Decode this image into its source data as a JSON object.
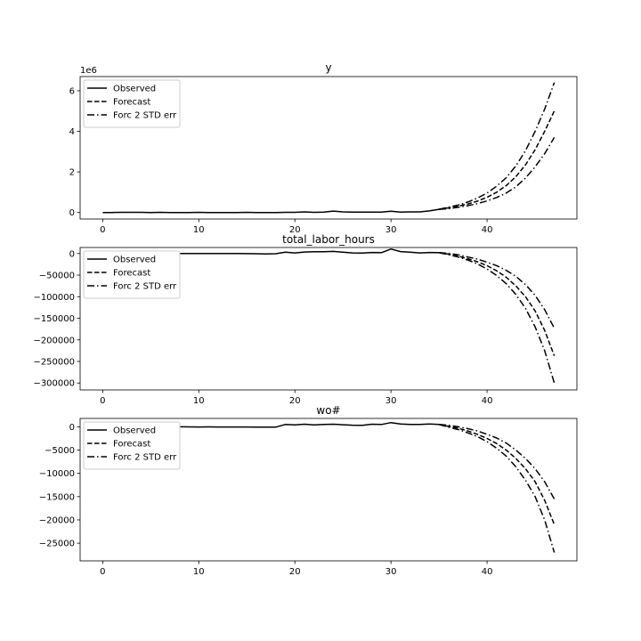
{
  "chart_data": [
    {
      "type": "line",
      "title": "y",
      "offset_text": "1e6",
      "xlim": [
        -2.35,
        49.35
      ],
      "ylim": [
        -0.32,
        6.7
      ],
      "xticks": [
        0,
        10,
        20,
        30,
        40
      ],
      "yticks": [
        0,
        2,
        4,
        6
      ],
      "ytick_labels": [
        "0",
        "2",
        "4",
        "6"
      ],
      "legend": "upper-left",
      "series": [
        {
          "name": "Observed",
          "style": "solid",
          "x": [
            0,
            1,
            2,
            3,
            4,
            5,
            6,
            7,
            8,
            9,
            10,
            11,
            12,
            13,
            14,
            15,
            16,
            17,
            18,
            19,
            20,
            21,
            22,
            23,
            24,
            25,
            26,
            27,
            28,
            29,
            30,
            31,
            32,
            33,
            34,
            35
          ],
          "values": [
            0.0,
            0.0,
            0.01,
            0.01,
            0.01,
            0.0,
            0.01,
            0.0,
            0.0,
            0.0,
            0.01,
            0.0,
            0.0,
            0.0,
            0.0,
            0.01,
            0.0,
            0.0,
            0.0,
            0.01,
            0.01,
            0.03,
            0.01,
            0.02,
            0.07,
            0.03,
            0.02,
            0.02,
            0.02,
            0.02,
            0.06,
            0.02,
            0.03,
            0.03,
            0.08,
            0.16
          ]
        },
        {
          "name": "Forecast",
          "style": "dashed",
          "x": [
            35,
            36,
            37,
            38,
            39,
            40,
            41,
            42,
            43,
            44,
            45,
            46,
            47
          ],
          "values": [
            0.16,
            0.23,
            0.31,
            0.42,
            0.56,
            0.75,
            1.0,
            1.33,
            1.77,
            2.35,
            3.1,
            4.0,
            5.0
          ]
        },
        {
          "name": "Forc 2 STD err",
          "style": "dashdot",
          "x": [
            35,
            36,
            37,
            38,
            39,
            40,
            41,
            42,
            43,
            44,
            45,
            46,
            47
          ],
          "values": [
            0.16,
            0.27,
            0.37,
            0.52,
            0.71,
            0.96,
            1.3,
            1.72,
            2.3,
            3.05,
            4.0,
            5.1,
            6.4
          ]
        },
        {
          "name": "",
          "style": "dashdot",
          "x": [
            35,
            36,
            37,
            38,
            39,
            40,
            41,
            42,
            43,
            44,
            45,
            46,
            47
          ],
          "values": [
            0.16,
            0.19,
            0.26,
            0.34,
            0.44,
            0.57,
            0.74,
            0.96,
            1.27,
            1.7,
            2.25,
            2.9,
            3.7
          ]
        }
      ]
    },
    {
      "type": "line",
      "title": "total_labor_hours",
      "xlim": [
        -2.35,
        49.35
      ],
      "ylim": [
        -316000,
        14000
      ],
      "xticks": [
        0,
        10,
        20,
        30,
        40
      ],
      "yticks": [
        0,
        -50000,
        -100000,
        -150000,
        -200000,
        -250000,
        -300000
      ],
      "ytick_labels": [
        "0",
        "−50000",
        "−100000",
        "−150000",
        "−200000",
        "−250000",
        "−300000"
      ],
      "legend": "upper-left",
      "series": [
        {
          "name": "Observed",
          "style": "solid",
          "x": [
            0,
            1,
            2,
            3,
            4,
            5,
            6,
            7,
            8,
            9,
            10,
            11,
            12,
            13,
            14,
            15,
            16,
            17,
            18,
            19,
            20,
            21,
            22,
            23,
            24,
            25,
            26,
            27,
            28,
            29,
            30,
            31,
            32,
            33,
            34,
            35
          ],
          "values": [
            0,
            0,
            0,
            0,
            0,
            0,
            0,
            0,
            0,
            0,
            0,
            0,
            0,
            200,
            0,
            -200,
            -500,
            -800,
            -500,
            3000,
            1500,
            3500,
            4000,
            4000,
            5000,
            3000,
            1500,
            1000,
            2500,
            2000,
            10500,
            4500,
            3000,
            1500,
            2500,
            2000
          ]
        },
        {
          "name": "Forecast",
          "style": "dashed",
          "x": [
            35,
            36,
            37,
            38,
            39,
            40,
            41,
            42,
            43,
            44,
            45,
            46,
            47
          ],
          "values": [
            2000,
            -1500,
            -6000,
            -12000,
            -19000,
            -28000,
            -40000,
            -55000,
            -75000,
            -100000,
            -133000,
            -178000,
            -237000
          ]
        },
        {
          "name": "Forc 2 STD err",
          "style": "dashdot",
          "x": [
            35,
            36,
            37,
            38,
            39,
            40,
            41,
            42,
            43,
            44,
            45,
            46,
            47
          ],
          "values": [
            2000,
            -3000,
            -8000,
            -15000,
            -24000,
            -36000,
            -51000,
            -70000,
            -95000,
            -127000,
            -170000,
            -225000,
            -300000
          ]
        },
        {
          "name": "",
          "style": "dashdot",
          "x": [
            35,
            36,
            37,
            38,
            39,
            40,
            41,
            42,
            43,
            44,
            45,
            46,
            47
          ],
          "values": [
            2000,
            500,
            -3000,
            -8000,
            -13000,
            -20000,
            -28000,
            -39000,
            -53000,
            -72000,
            -97000,
            -130000,
            -173000
          ]
        }
      ]
    },
    {
      "type": "line",
      "title": "wo#",
      "xlim": [
        -2.35,
        49.35
      ],
      "ylim": [
        -28800,
        1800
      ],
      "xticks": [
        0,
        10,
        20,
        30,
        40
      ],
      "yticks": [
        0,
        -5000,
        -10000,
        -15000,
        -20000,
        -25000
      ],
      "ytick_labels": [
        "0",
        "−5000",
        "−10000",
        "−15000",
        "−20000",
        "−25000"
      ],
      "legend": "upper-left",
      "series": [
        {
          "name": "Observed",
          "style": "solid",
          "x": [
            0,
            1,
            2,
            3,
            4,
            5,
            6,
            7,
            8,
            9,
            10,
            11,
            12,
            13,
            14,
            15,
            16,
            17,
            18,
            19,
            20,
            21,
            22,
            23,
            24,
            25,
            26,
            27,
            28,
            29,
            30,
            31,
            32,
            33,
            34,
            35
          ],
          "values": [
            0,
            0,
            0,
            0,
            0,
            0,
            0,
            0,
            0,
            -20,
            -30,
            -20,
            -30,
            -40,
            -30,
            -40,
            -60,
            -80,
            -80,
            500,
            400,
            550,
            400,
            500,
            550,
            450,
            350,
            300,
            550,
            500,
            900,
            600,
            500,
            500,
            600,
            500
          ]
        },
        {
          "name": "Forecast",
          "style": "dashed",
          "x": [
            35,
            36,
            37,
            38,
            39,
            40,
            41,
            42,
            43,
            44,
            45,
            46,
            47
          ],
          "values": [
            500,
            100,
            -300,
            -900,
            -1600,
            -2500,
            -3600,
            -5000,
            -6800,
            -9000,
            -11800,
            -15800,
            -21000
          ]
        },
        {
          "name": "Forc 2 STD err",
          "style": "dashdot",
          "x": [
            35,
            36,
            37,
            38,
            39,
            40,
            41,
            42,
            43,
            44,
            45,
            46,
            47
          ],
          "values": [
            500,
            -100,
            -600,
            -1300,
            -2100,
            -3200,
            -4600,
            -6300,
            -8600,
            -11500,
            -15000,
            -20000,
            -27000
          ]
        },
        {
          "name": "",
          "style": "dashdot",
          "x": [
            35,
            36,
            37,
            38,
            39,
            40,
            41,
            42,
            43,
            44,
            45,
            46,
            47
          ],
          "values": [
            500,
            350,
            0,
            -400,
            -900,
            -1600,
            -2400,
            -3500,
            -5000,
            -6800,
            -9000,
            -11800,
            -15500
          ]
        }
      ]
    }
  ]
}
